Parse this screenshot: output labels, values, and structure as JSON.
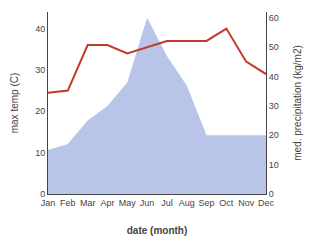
{
  "chart_data": {
    "type": "line",
    "categories": [
      "Jan",
      "Feb",
      "Mar",
      "Apr",
      "May",
      "Jun",
      "Jul",
      "Aug",
      "Sep",
      "Oct",
      "Nov",
      "Dec"
    ],
    "xlabel": "date (month)",
    "ylabel": "max temp (C)",
    "y2label": "med. precipitation (kg/m2)",
    "ylim": [
      0,
      44
    ],
    "yticks": [
      0,
      10,
      20,
      30,
      40
    ],
    "y2lim": [
      0,
      62
    ],
    "y2ticks": [
      0,
      10,
      20,
      30,
      40,
      50,
      60
    ],
    "grid": false,
    "series": [
      {
        "type": "area",
        "color": "#b8c4e8",
        "axis": "y2",
        "values": [
          15,
          17,
          25,
          30,
          38,
          60,
          47,
          37,
          20,
          20,
          20,
          20
        ]
      },
      {
        "type": "line",
        "color": "#c0392b",
        "values": [
          24.5,
          25,
          36,
          36,
          34,
          35.5,
          37,
          37,
          37,
          40,
          32,
          29
        ]
      }
    ]
  }
}
